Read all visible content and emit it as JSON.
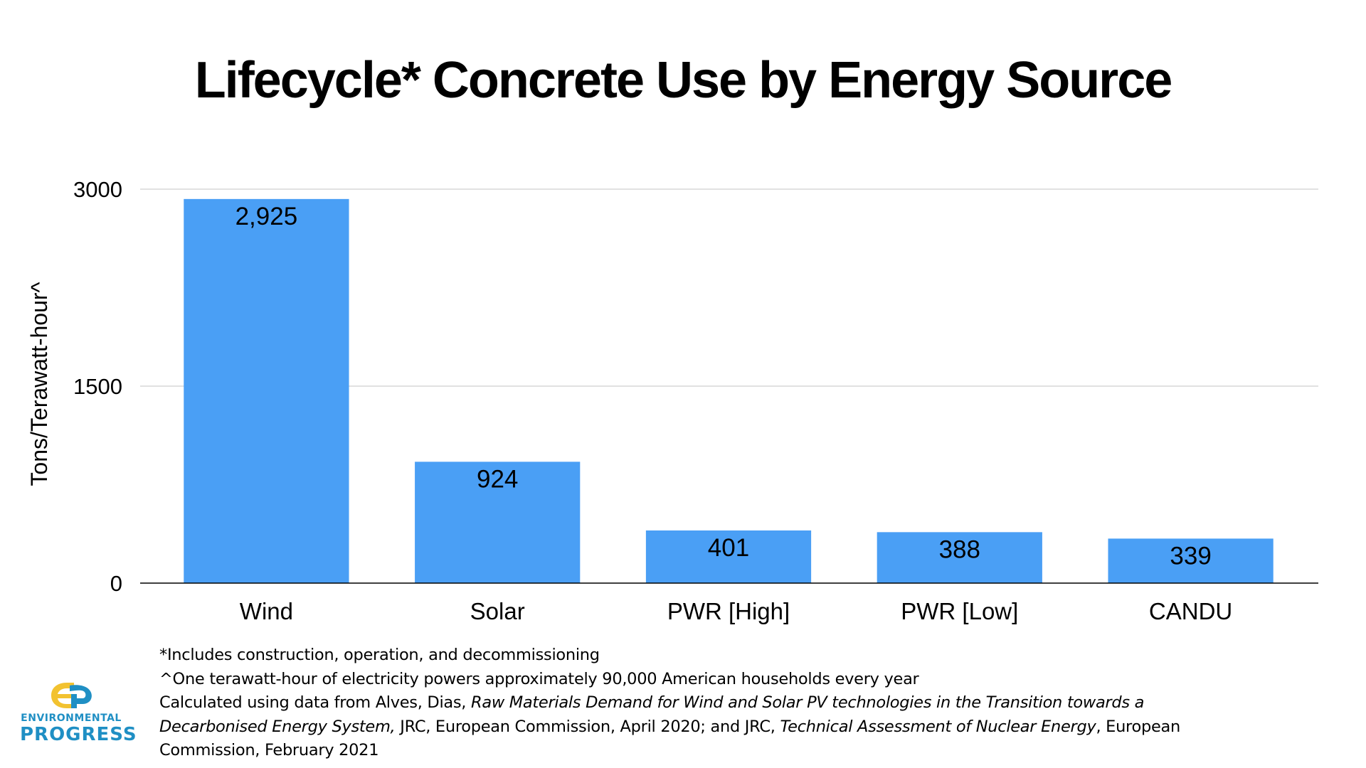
{
  "chart_data": {
    "type": "bar",
    "title": "Lifecycle* Concrete Use by Energy Source",
    "categories": [
      "Wind",
      "Solar",
      "PWR [High]",
      "PWR [Low]",
      "CANDU"
    ],
    "values": [
      2925,
      924,
      401,
      388,
      339
    ],
    "data_labels": [
      "2,925",
      "924",
      "401",
      "388",
      "339"
    ],
    "xlabel": "",
    "ylabel": "Tons/Terawatt-hour^",
    "ylim": [
      0,
      3000
    ],
    "yticks": [
      0,
      1500,
      3000
    ],
    "ytick_labels": [
      "0",
      "1500",
      "3000"
    ],
    "grid": true,
    "bar_color": "#4a9ff5"
  },
  "notes": {
    "line1": "*Includes construction, operation, and decommissioning",
    "line2": "^One terawatt-hour of electricity powers approximately 90,000 American households every year",
    "line3_a": "Calculated using data from Alves, Dias, ",
    "line3_b": "Raw Materials Demand for Wind and Solar PV technologies in the Transition towards a",
    "line4_a": "Decarbonised Energy System,",
    "line4_b": " JRC, European Commission, April 2020;  and JRC, ",
    "line4_c": "Technical Assessment of Nuclear Energy",
    "line4_d": ", European",
    "line5": "Commission, February 2021"
  },
  "logo": {
    "line1": "ENVIRONMENTAL",
    "line2": "PROGRESS",
    "primary_color": "#1f8fc4",
    "secondary_color": "#f2c230"
  }
}
